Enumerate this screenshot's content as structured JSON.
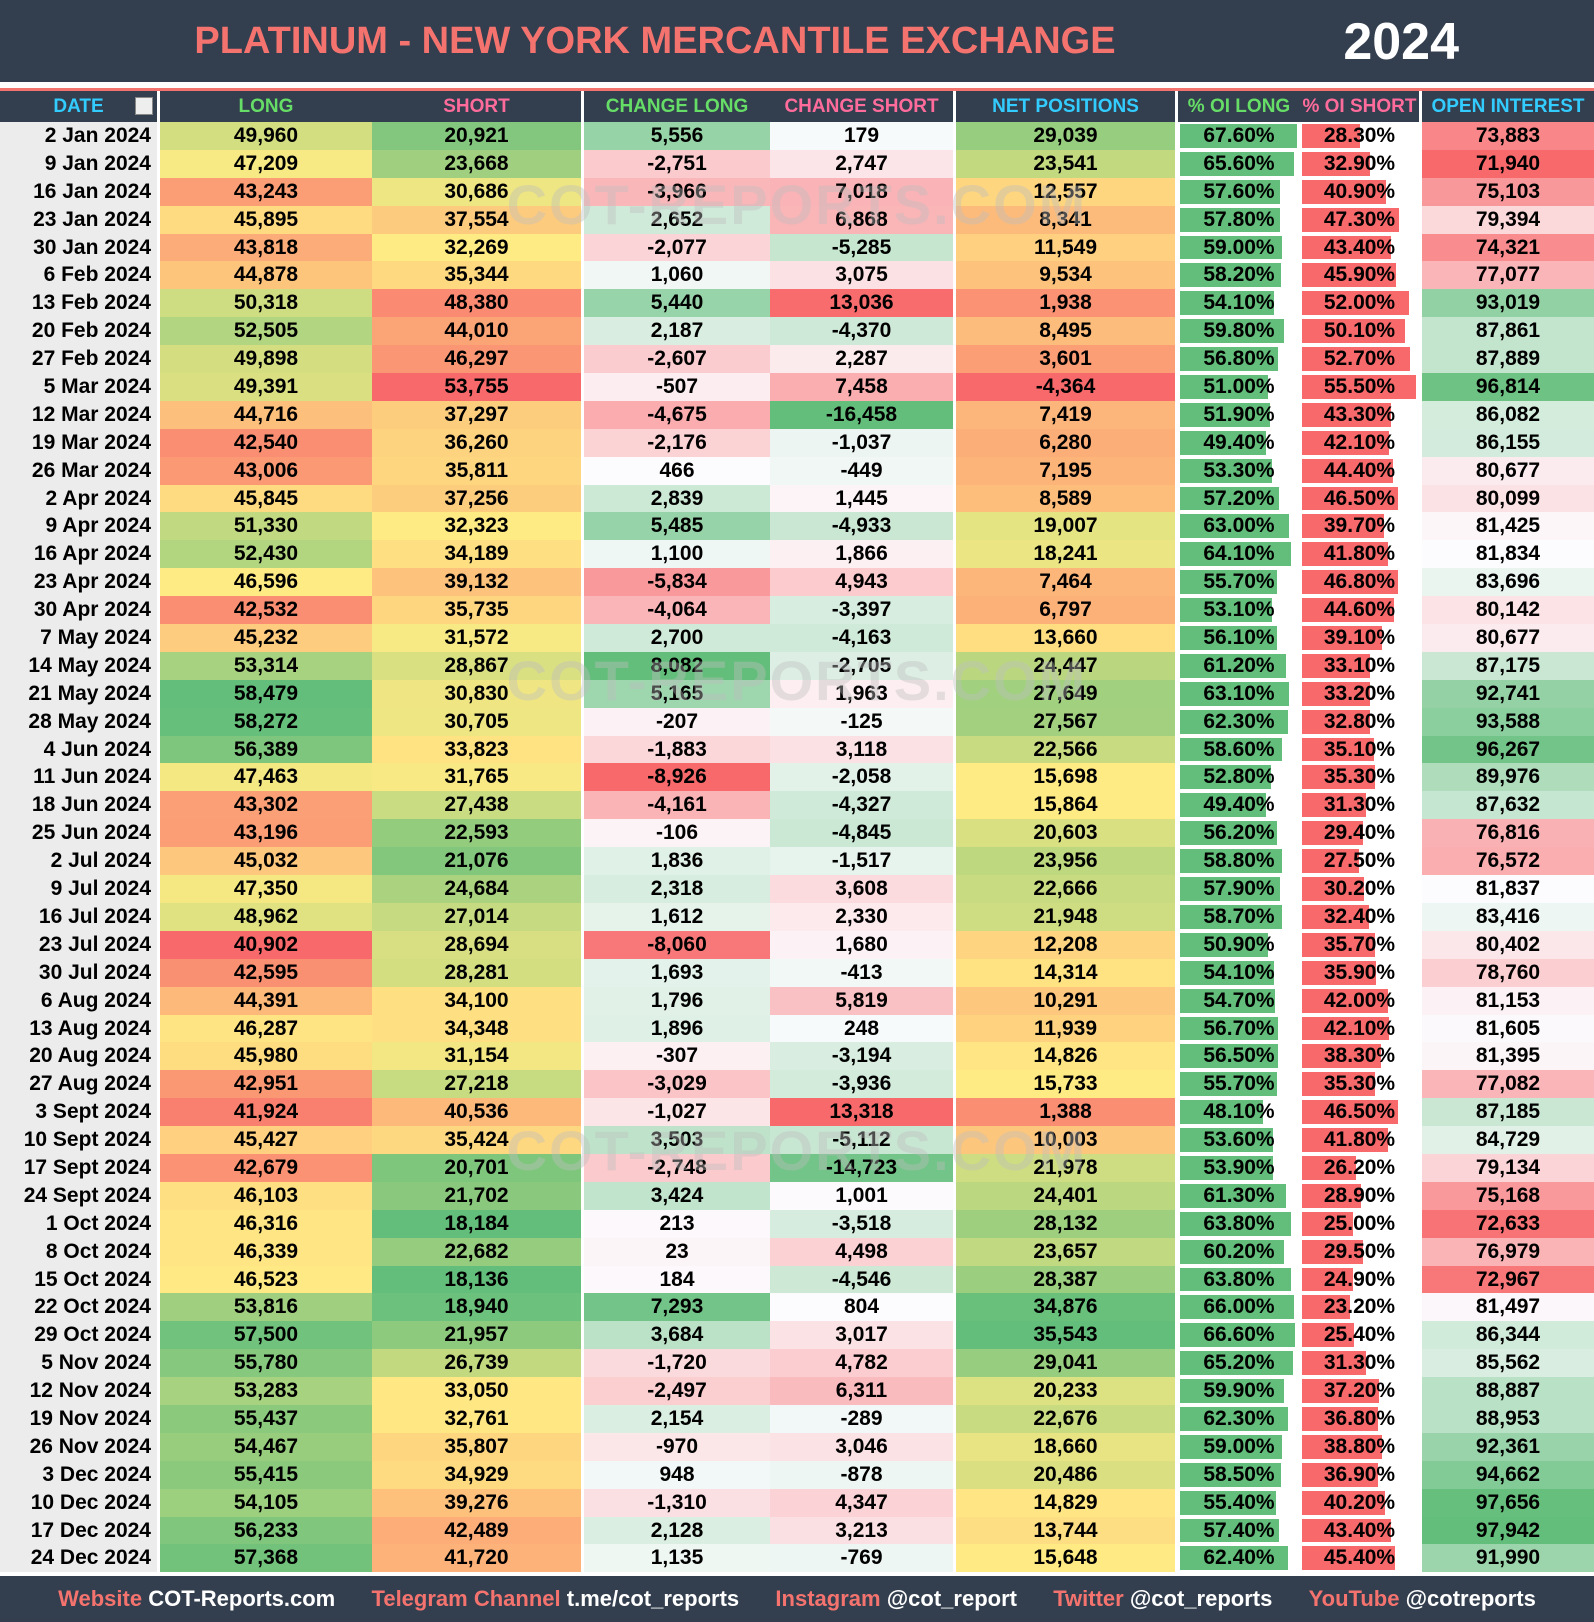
{
  "header": {
    "title": "PLATINUM - NEW YORK MERCANTILE EXCHANGE",
    "year": "2024"
  },
  "watermark": "COT-REPORTS.COM",
  "table": {
    "columns": [
      "DATE",
      "LONG",
      "SHORT",
      "CHANGE LONG",
      "CHANGE SHORT",
      "NET POSITIONS",
      "% OI LONG",
      "% OI SHORT",
      "OPEN INTEREST"
    ],
    "rows": [
      [
        "2 Jan 2024",
        "49,960",
        "20,921",
        "5,556",
        "179",
        "29,039",
        "67.60%",
        "28.30%",
        "73,883"
      ],
      [
        "9 Jan 2024",
        "47,209",
        "23,668",
        "-2,751",
        "2,747",
        "23,541",
        "65.60%",
        "32.90%",
        "71,940"
      ],
      [
        "16 Jan 2024",
        "43,243",
        "30,686",
        "-3,966",
        "7,018",
        "12,557",
        "57.60%",
        "40.90%",
        "75,103"
      ],
      [
        "23 Jan 2024",
        "45,895",
        "37,554",
        "2,652",
        "6,868",
        "8,341",
        "57.80%",
        "47.30%",
        "79,394"
      ],
      [
        "30 Jan 2024",
        "43,818",
        "32,269",
        "-2,077",
        "-5,285",
        "11,549",
        "59.00%",
        "43.40%",
        "74,321"
      ],
      [
        "6 Feb 2024",
        "44,878",
        "35,344",
        "1,060",
        "3,075",
        "9,534",
        "58.20%",
        "45.90%",
        "77,077"
      ],
      [
        "13 Feb 2024",
        "50,318",
        "48,380",
        "5,440",
        "13,036",
        "1,938",
        "54.10%",
        "52.00%",
        "93,019"
      ],
      [
        "20 Feb 2024",
        "52,505",
        "44,010",
        "2,187",
        "-4,370",
        "8,495",
        "59.80%",
        "50.10%",
        "87,861"
      ],
      [
        "27 Feb 2024",
        "49,898",
        "46,297",
        "-2,607",
        "2,287",
        "3,601",
        "56.80%",
        "52.70%",
        "87,889"
      ],
      [
        "5 Mar 2024",
        "49,391",
        "53,755",
        "-507",
        "7,458",
        "-4,364",
        "51.00%",
        "55.50%",
        "96,814"
      ],
      [
        "12 Mar 2024",
        "44,716",
        "37,297",
        "-4,675",
        "-16,458",
        "7,419",
        "51.90%",
        "43.30%",
        "86,082"
      ],
      [
        "19 Mar 2024",
        "42,540",
        "36,260",
        "-2,176",
        "-1,037",
        "6,280",
        "49.40%",
        "42.10%",
        "86,155"
      ],
      [
        "26 Mar 2024",
        "43,006",
        "35,811",
        "466",
        "-449",
        "7,195",
        "53.30%",
        "44.40%",
        "80,677"
      ],
      [
        "2 Apr 2024",
        "45,845",
        "37,256",
        "2,839",
        "1,445",
        "8,589",
        "57.20%",
        "46.50%",
        "80,099"
      ],
      [
        "9 Apr 2024",
        "51,330",
        "32,323",
        "5,485",
        "-4,933",
        "19,007",
        "63.00%",
        "39.70%",
        "81,425"
      ],
      [
        "16 Apr 2024",
        "52,430",
        "34,189",
        "1,100",
        "1,866",
        "18,241",
        "64.10%",
        "41.80%",
        "81,834"
      ],
      [
        "23 Apr 2024",
        "46,596",
        "39,132",
        "-5,834",
        "4,943",
        "7,464",
        "55.70%",
        "46.80%",
        "83,696"
      ],
      [
        "30 Apr 2024",
        "42,532",
        "35,735",
        "-4,064",
        "-3,397",
        "6,797",
        "53.10%",
        "44.60%",
        "80,142"
      ],
      [
        "7 May 2024",
        "45,232",
        "31,572",
        "2,700",
        "-4,163",
        "13,660",
        "56.10%",
        "39.10%",
        "80,677"
      ],
      [
        "14 May 2024",
        "53,314",
        "28,867",
        "8,082",
        "-2,705",
        "24,447",
        "61.20%",
        "33.10%",
        "87,175"
      ],
      [
        "21 May 2024",
        "58,479",
        "30,830",
        "5,165",
        "1,963",
        "27,649",
        "63.10%",
        "33.20%",
        "92,741"
      ],
      [
        "28 May 2024",
        "58,272",
        "30,705",
        "-207",
        "-125",
        "27,567",
        "62.30%",
        "32.80%",
        "93,588"
      ],
      [
        "4 Jun 2024",
        "56,389",
        "33,823",
        "-1,883",
        "3,118",
        "22,566",
        "58.60%",
        "35.10%",
        "96,267"
      ],
      [
        "11 Jun 2024",
        "47,463",
        "31,765",
        "-8,926",
        "-2,058",
        "15,698",
        "52.80%",
        "35.30%",
        "89,976"
      ],
      [
        "18 Jun 2024",
        "43,302",
        "27,438",
        "-4,161",
        "-4,327",
        "15,864",
        "49.40%",
        "31.30%",
        "87,632"
      ],
      [
        "25 Jun 2024",
        "43,196",
        "22,593",
        "-106",
        "-4,845",
        "20,603",
        "56.20%",
        "29.40%",
        "76,816"
      ],
      [
        "2 Jul 2024",
        "45,032",
        "21,076",
        "1,836",
        "-1,517",
        "23,956",
        "58.80%",
        "27.50%",
        "76,572"
      ],
      [
        "9 Jul 2024",
        "47,350",
        "24,684",
        "2,318",
        "3,608",
        "22,666",
        "57.90%",
        "30.20%",
        "81,837"
      ],
      [
        "16 Jul 2024",
        "48,962",
        "27,014",
        "1,612",
        "2,330",
        "21,948",
        "58.70%",
        "32.40%",
        "83,416"
      ],
      [
        "23 Jul 2024",
        "40,902",
        "28,694",
        "-8,060",
        "1,680",
        "12,208",
        "50.90%",
        "35.70%",
        "80,402"
      ],
      [
        "30 Jul 2024",
        "42,595",
        "28,281",
        "1,693",
        "-413",
        "14,314",
        "54.10%",
        "35.90%",
        "78,760"
      ],
      [
        "6 Aug 2024",
        "44,391",
        "34,100",
        "1,796",
        "5,819",
        "10,291",
        "54.70%",
        "42.00%",
        "81,153"
      ],
      [
        "13 Aug 2024",
        "46,287",
        "34,348",
        "1,896",
        "248",
        "11,939",
        "56.70%",
        "42.10%",
        "81,605"
      ],
      [
        "20 Aug 2024",
        "45,980",
        "31,154",
        "-307",
        "-3,194",
        "14,826",
        "56.50%",
        "38.30%",
        "81,395"
      ],
      [
        "27 Aug 2024",
        "42,951",
        "27,218",
        "-3,029",
        "-3,936",
        "15,733",
        "55.70%",
        "35.30%",
        "77,082"
      ],
      [
        "3 Sept 2024",
        "41,924",
        "40,536",
        "-1,027",
        "13,318",
        "1,388",
        "48.10%",
        "46.50%",
        "87,185"
      ],
      [
        "10 Sept 2024",
        "45,427",
        "35,424",
        "3,503",
        "-5,112",
        "10,003",
        "53.60%",
        "41.80%",
        "84,729"
      ],
      [
        "17 Sept 2024",
        "42,679",
        "20,701",
        "-2,748",
        "-14,723",
        "21,978",
        "53.90%",
        "26.20%",
        "79,134"
      ],
      [
        "24 Sept 2024",
        "46,103",
        "21,702",
        "3,424",
        "1,001",
        "24,401",
        "61.30%",
        "28.90%",
        "75,168"
      ],
      [
        "1 Oct 2024",
        "46,316",
        "18,184",
        "213",
        "-3,518",
        "28,132",
        "63.80%",
        "25.00%",
        "72,633"
      ],
      [
        "8 Oct 2024",
        "46,339",
        "22,682",
        "23",
        "4,498",
        "23,657",
        "60.20%",
        "29.50%",
        "76,979"
      ],
      [
        "15 Oct 2024",
        "46,523",
        "18,136",
        "184",
        "-4,546",
        "28,387",
        "63.80%",
        "24.90%",
        "72,967"
      ],
      [
        "22 Oct 2024",
        "53,816",
        "18,940",
        "7,293",
        "804",
        "34,876",
        "66.00%",
        "23.20%",
        "81,497"
      ],
      [
        "29 Oct 2024",
        "57,500",
        "21,957",
        "3,684",
        "3,017",
        "35,543",
        "66.60%",
        "25.40%",
        "86,344"
      ],
      [
        "5 Nov 2024",
        "55,780",
        "26,739",
        "-1,720",
        "4,782",
        "29,041",
        "65.20%",
        "31.30%",
        "85,562"
      ],
      [
        "12 Nov 2024",
        "53,283",
        "33,050",
        "-2,497",
        "6,311",
        "20,233",
        "59.90%",
        "37.20%",
        "88,887"
      ],
      [
        "19 Nov 2024",
        "55,437",
        "32,761",
        "2,154",
        "-289",
        "22,676",
        "62.30%",
        "36.80%",
        "88,953"
      ],
      [
        "26 Nov 2024",
        "54,467",
        "35,807",
        "-970",
        "3,046",
        "18,660",
        "59.00%",
        "38.80%",
        "92,361"
      ],
      [
        "3 Dec 2024",
        "55,415",
        "34,929",
        "948",
        "-878",
        "20,486",
        "58.50%",
        "36.90%",
        "94,662"
      ],
      [
        "10 Dec 2024",
        "54,105",
        "39,276",
        "-1,310",
        "4,347",
        "14,829",
        "55.40%",
        "40.20%",
        "97,656"
      ],
      [
        "17 Dec 2024",
        "56,233",
        "42,489",
        "2,128",
        "3,213",
        "13,744",
        "57.40%",
        "43.40%",
        "97,942"
      ],
      [
        "24 Dec 2024",
        "57,368",
        "41,720",
        "1,135",
        "-769",
        "15,648",
        "62.40%",
        "45.40%",
        "91,990"
      ]
    ]
  },
  "footer": [
    {
      "label": "Website",
      "value": "COT-Reports.com"
    },
    {
      "label": "Telegram Channel",
      "value": "t.me/cot_reports"
    },
    {
      "label": "Instagram",
      "value": "@cot_report"
    },
    {
      "label": "Twitter",
      "value": "@cot_reports"
    },
    {
      "label": "YouTube",
      "value": "@cotreports"
    }
  ]
}
